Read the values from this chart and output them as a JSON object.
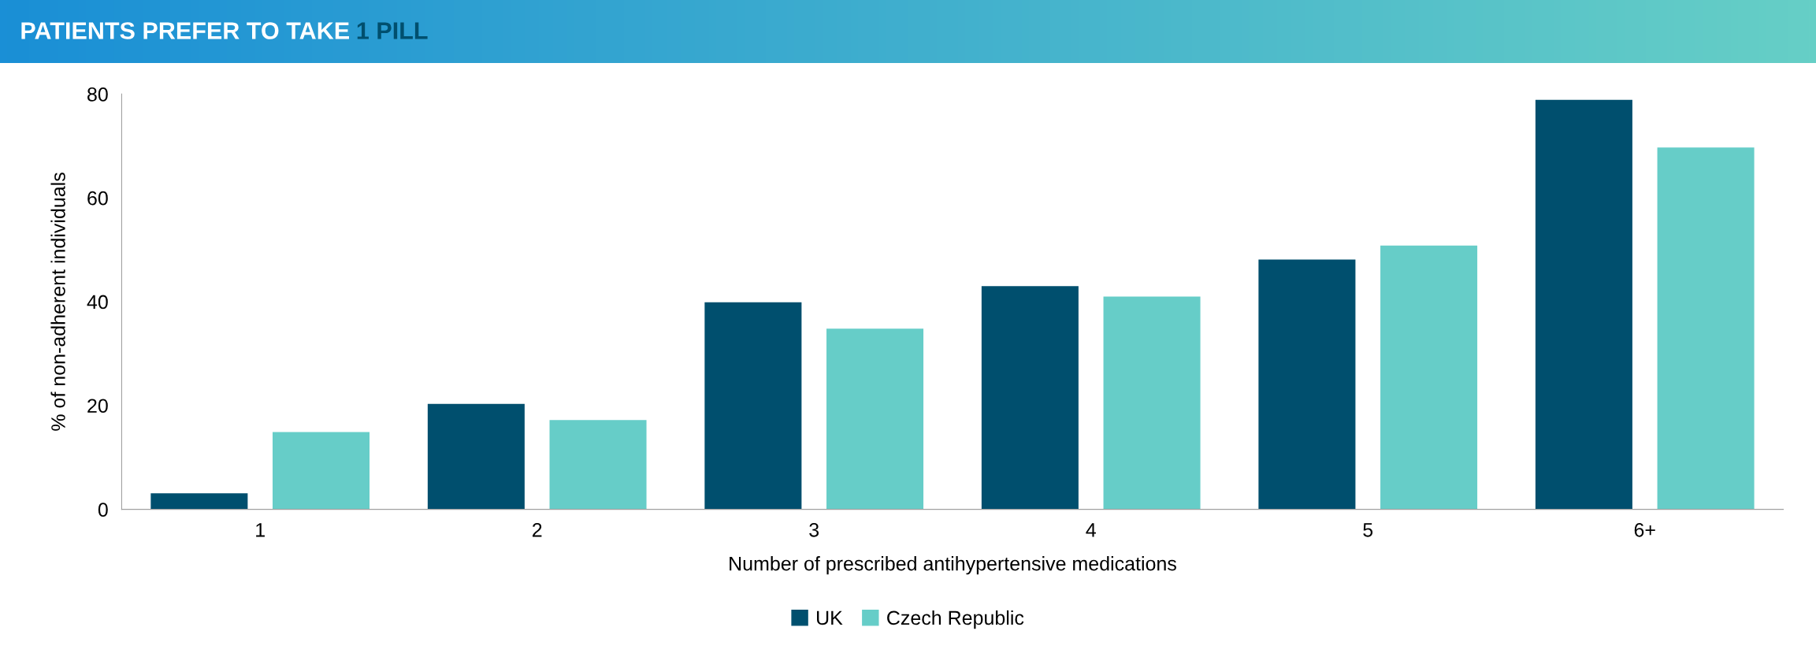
{
  "chart_data": {
    "type": "bar",
    "title": "PATIENTS PREFER TO TAKE 1 PILL",
    "xlabel": "Number of prescribed antihypertensive medications",
    "ylabel": "% of non-adherent individuals",
    "categories": [
      "1",
      "2",
      "3",
      "4",
      "5",
      "6+"
    ],
    "series": [
      {
        "name": "UK",
        "color": "#004f6e",
        "values": [
          3.1,
          20.3,
          39.9,
          43.0,
          48.1,
          78.9
        ]
      },
      {
        "name": "Czech Republic",
        "color": "#66cdc8",
        "values": [
          14.9,
          17.2,
          34.8,
          41.0,
          50.8,
          69.7
        ]
      }
    ],
    "ylim": [
      0,
      80
    ],
    "yticks": [
      0,
      20,
      40,
      60,
      80
    ],
    "grid": false,
    "legend": "bottom"
  }
}
